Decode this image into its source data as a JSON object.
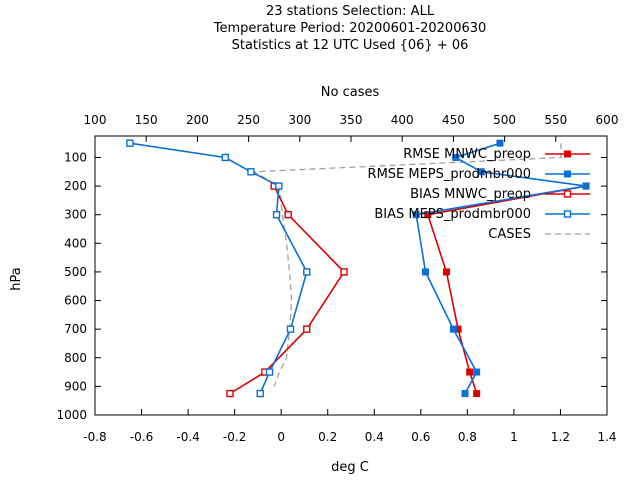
{
  "chart_data": {
    "type": "line",
    "title_lines": [
      "23 stations Selection: ALL",
      "Temperature  Period: 20200601-20200630",
      "Statistics at 12 UTC  Used {06} + 06"
    ],
    "xlabel": "deg C",
    "x2label": "No cases",
    "ylabel": "hPa",
    "xlim": [
      -0.8,
      1.4
    ],
    "x2lim": [
      100,
      600
    ],
    "ylim": [
      1000,
      25
    ],
    "y_reversed": true,
    "xticks": [
      "-0.8",
      "-0.6",
      "-0.4",
      "-0.2",
      "0",
      "0.2",
      "0.4",
      "0.6",
      "0.8",
      "1",
      "1.2",
      "1.4"
    ],
    "x2ticks": [
      "100",
      "150",
      "200",
      "250",
      "300",
      "350",
      "400",
      "450",
      "500",
      "550",
      "600"
    ],
    "yticks": [
      "100",
      "200",
      "300",
      "400",
      "500",
      "600",
      "700",
      "800",
      "900",
      "1000"
    ],
    "grid": false,
    "legend_position": "top-right",
    "colors": {
      "mnwc": "#dd0000",
      "meps": "#0a70d8",
      "cases": "#a0a0a0",
      "axis": "#000000"
    },
    "series": [
      {
        "name": "RMSE MNWC_preop",
        "key": "rmse_mnwc",
        "axis": "x",
        "color": "#dd0000",
        "dash": "",
        "marker": "filled",
        "points": [
          [
            1.31,
            200
          ],
          [
            0.63,
            300
          ],
          [
            0.71,
            500
          ],
          [
            0.76,
            700
          ],
          [
            0.81,
            850
          ],
          [
            0.84,
            925
          ]
        ]
      },
      {
        "name": "RMSE MEPS_prodmbr000",
        "key": "rmse_meps",
        "axis": "x",
        "color": "#0a70d8",
        "dash": "",
        "marker": "filled",
        "points": [
          [
            0.94,
            50
          ],
          [
            0.75,
            100
          ],
          [
            0.86,
            150
          ],
          [
            1.31,
            200
          ],
          [
            0.58,
            300
          ],
          [
            0.62,
            500
          ],
          [
            0.74,
            700
          ],
          [
            0.84,
            850
          ],
          [
            0.79,
            925
          ]
        ]
      },
      {
        "name": "BIAS MNWC_preop",
        "key": "bias_mnwc",
        "axis": "x",
        "color": "#dd0000",
        "dash": "",
        "marker": "open",
        "points": [
          [
            -0.03,
            200
          ],
          [
            0.03,
            300
          ],
          [
            0.27,
            500
          ],
          [
            0.11,
            700
          ],
          [
            -0.07,
            850
          ],
          [
            -0.22,
            925
          ]
        ]
      },
      {
        "name": "BIAS MEPS_prodmbr000",
        "key": "bias_meps",
        "axis": "x",
        "color": "#0a70d8",
        "dash": "",
        "marker": "open",
        "points": [
          [
            -0.65,
            50
          ],
          [
            -0.24,
            100
          ],
          [
            -0.13,
            150
          ],
          [
            -0.01,
            200
          ],
          [
            -0.02,
            300
          ],
          [
            0.11,
            500
          ],
          [
            0.04,
            700
          ],
          [
            -0.05,
            850
          ],
          [
            -0.09,
            925
          ]
        ]
      },
      {
        "name": "CASES",
        "key": "cases",
        "axis": "x2",
        "color": "#a0a0a0",
        "dash": "6,4",
        "marker": "none",
        "points": [
          [
            555,
            50
          ],
          [
            555,
            100
          ],
          [
            255,
            150
          ],
          [
            280,
            200
          ],
          [
            283,
            300
          ],
          [
            287,
            400
          ],
          [
            290,
            500
          ],
          [
            292,
            600
          ],
          [
            290,
            700
          ],
          [
            287,
            800
          ],
          [
            280,
            850
          ],
          [
            275,
            900
          ]
        ]
      }
    ]
  }
}
